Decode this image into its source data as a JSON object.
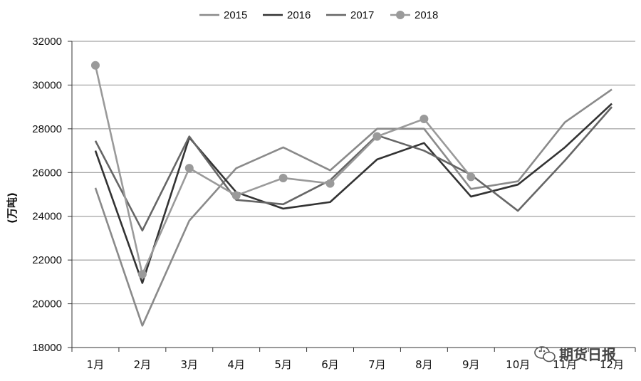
{
  "chart_data": {
    "type": "line",
    "ylabel": "(万吨)",
    "ylim": [
      18000,
      32000
    ],
    "yticks": [
      18000,
      20000,
      22000,
      24000,
      26000,
      28000,
      30000,
      32000
    ],
    "categories": [
      "1月",
      "2月",
      "3月",
      "4月",
      "5月",
      "6月",
      "7月",
      "8月",
      "9月",
      "10月",
      "11月",
      "12月"
    ],
    "grid": true,
    "legend_position": "top",
    "series": [
      {
        "name": "2015",
        "color": "#8a8a8a",
        "marker": "none",
        "values": [
          25300,
          19000,
          23800,
          26200,
          27150,
          26100,
          28000,
          28000,
          25250,
          25600,
          28300,
          29800
        ]
      },
      {
        "name": "2016",
        "color": "#333333",
        "marker": "none",
        "values": [
          27000,
          20950,
          27600,
          25100,
          24350,
          24650,
          26600,
          27350,
          24900,
          25450,
          27150,
          29150
        ]
      },
      {
        "name": "2017",
        "color": "#666666",
        "marker": "none",
        "values": [
          27450,
          23350,
          27650,
          24750,
          24550,
          25650,
          27700,
          27000,
          25900,
          24250,
          26550,
          29000
        ]
      },
      {
        "name": "2018",
        "color": "#9a9a9a",
        "marker": "circle",
        "values": [
          30900,
          21350,
          26200,
          24950,
          25750,
          25500,
          27650,
          28450,
          25800,
          null,
          null,
          null
        ]
      }
    ]
  },
  "watermark": {
    "icon": "wechat-icon",
    "text": "期货日报"
  }
}
